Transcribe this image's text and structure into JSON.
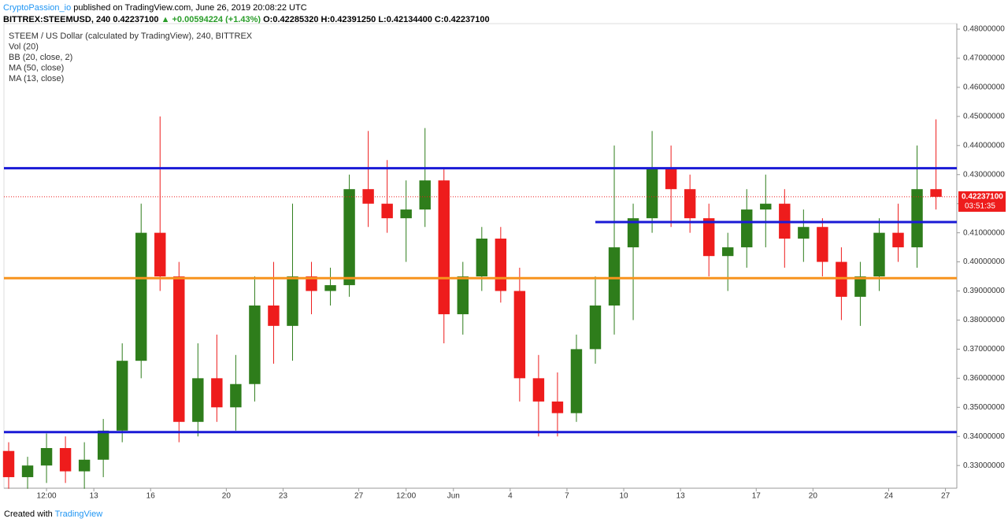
{
  "header": {
    "author": "CryptoPassion_io",
    "published": "published on TradingView.com, June 26, 2019 20:08:22 UTC",
    "symbol": "BITTREX:STEEMUSD, 240",
    "price": "0.42237100",
    "change": "▲ +0.00594224 (+1.43%)",
    "open": "O:0.42285320",
    "high": "H:0.42391250",
    "low": "L:0.42134400",
    "close": "C:0.42237100"
  },
  "footer": {
    "created": "Created with",
    "brand": "TradingView"
  },
  "chart_data": {
    "type": "candlestick",
    "indicators": [
      "STEEM / US Dollar (calculated by TradingView), 240, BITTREX",
      "Vol (20)",
      "BB (20, close, 2)",
      "MA (50, close)",
      "MA (13, close)"
    ],
    "up_color": "#2e7d1b",
    "down_color": "#ee1c1c",
    "xlim": [
      -4.75,
      45.6
    ],
    "ylim": [
      0.3222,
      0.4819
    ],
    "xticks": [
      {
        "value": -2.5,
        "label": "12:00"
      },
      {
        "value": 0,
        "label": "13"
      },
      {
        "value": 3,
        "label": "16"
      },
      {
        "value": 7,
        "label": "20"
      },
      {
        "value": 10,
        "label": "23"
      },
      {
        "value": 14,
        "label": "27"
      },
      {
        "value": 16.5,
        "label": "12:00"
      },
      {
        "value": 19,
        "label": "Jun"
      },
      {
        "value": 22,
        "label": "4"
      },
      {
        "value": 25,
        "label": "7"
      },
      {
        "value": 28,
        "label": "10"
      },
      {
        "value": 31,
        "label": "13"
      },
      {
        "value": 35,
        "label": "17"
      },
      {
        "value": 38,
        "label": "20"
      },
      {
        "value": 42,
        "label": "24"
      },
      {
        "value": 45,
        "label": "27"
      }
    ],
    "yticks": [
      {
        "value": 0.33,
        "label": "0.33000000"
      },
      {
        "value": 0.34,
        "label": "0.34000000"
      },
      {
        "value": 0.35,
        "label": "0.35000000"
      },
      {
        "value": 0.36,
        "label": "0.36000000"
      },
      {
        "value": 0.37,
        "label": "0.37000000"
      },
      {
        "value": 0.38,
        "label": "0.38000000"
      },
      {
        "value": 0.39,
        "label": "0.39000000"
      },
      {
        "value": 0.4,
        "label": "0.40000000"
      },
      {
        "value": 0.41,
        "label": "0.41000000"
      },
      {
        "value": 0.42,
        "label": "0.42000000"
      },
      {
        "value": 0.43,
        "label": "0.43000000"
      },
      {
        "value": 0.44,
        "label": "0.44000000"
      },
      {
        "value": 0.45,
        "label": "0.45000000"
      },
      {
        "value": 0.46,
        "label": "0.46000000"
      },
      {
        "value": 0.47,
        "label": "0.47000000"
      },
      {
        "value": 0.48,
        "label": "0.48000000"
      }
    ],
    "x": [
      -4.5,
      -3.5,
      -2.5,
      -1.5,
      -0.5,
      0.5,
      1.5,
      2.5,
      3.5,
      4.5,
      5.5,
      6.5,
      7.5,
      8.5,
      9.5,
      10.5,
      11.5,
      12.5,
      13.5,
      14.5,
      15.5,
      16.5,
      17.5,
      18.5,
      19.5,
      20.5,
      21.5,
      22.5,
      23.5,
      24.5,
      25.5,
      26.5,
      27.5,
      28.5,
      29.5,
      30.5,
      31.5,
      32.5,
      33.5,
      34.5,
      35.5,
      36.5,
      37.5,
      38.5,
      39.5,
      40.5,
      41.5,
      42.5,
      43.5,
      44.5
    ],
    "open": [
      0.335,
      0.326,
      0.33,
      0.336,
      0.328,
      0.332,
      0.342,
      0.366,
      0.41,
      0.395,
      0.345,
      0.36,
      0.35,
      0.358,
      0.385,
      0.378,
      0.395,
      0.39,
      0.392,
      0.425,
      0.42,
      0.415,
      0.418,
      0.428,
      0.382,
      0.395,
      0.408,
      0.39,
      0.36,
      0.352,
      0.348,
      0.37,
      0.385,
      0.405,
      0.415,
      0.432,
      0.425,
      0.415,
      0.402,
      0.405,
      0.418,
      0.42,
      0.408,
      0.412,
      0.4,
      0.388,
      0.395,
      0.41,
      0.405,
      0.425
    ],
    "high": [
      0.338,
      0.333,
      0.341,
      0.34,
      0.338,
      0.346,
      0.372,
      0.42,
      0.45,
      0.4,
      0.372,
      0.375,
      0.368,
      0.395,
      0.4,
      0.42,
      0.4,
      0.398,
      0.43,
      0.445,
      0.435,
      0.428,
      0.446,
      0.432,
      0.4,
      0.412,
      0.412,
      0.398,
      0.368,
      0.362,
      0.375,
      0.395,
      0.44,
      0.42,
      0.445,
      0.44,
      0.43,
      0.42,
      0.41,
      0.425,
      0.43,
      0.425,
      0.418,
      0.415,
      0.405,
      0.4,
      0.415,
      0.42,
      0.44,
      0.449
    ],
    "low": [
      0.322,
      0.322,
      0.324,
      0.324,
      0.322,
      0.326,
      0.338,
      0.36,
      0.39,
      0.338,
      0.34,
      0.345,
      0.342,
      0.352,
      0.365,
      0.366,
      0.382,
      0.385,
      0.388,
      0.412,
      0.41,
      0.4,
      0.412,
      0.372,
      0.375,
      0.39,
      0.386,
      0.352,
      0.34,
      0.34,
      0.345,
      0.365,
      0.375,
      0.38,
      0.41,
      0.412,
      0.41,
      0.395,
      0.39,
      0.398,
      0.405,
      0.398,
      0.4,
      0.395,
      0.38,
      0.378,
      0.39,
      0.4,
      0.398,
      0.418
    ],
    "close": [
      0.326,
      0.33,
      0.336,
      0.328,
      0.332,
      0.342,
      0.366,
      0.41,
      0.395,
      0.345,
      0.36,
      0.35,
      0.358,
      0.385,
      0.378,
      0.395,
      0.39,
      0.392,
      0.425,
      0.42,
      0.415,
      0.418,
      0.428,
      0.382,
      0.395,
      0.408,
      0.39,
      0.36,
      0.352,
      0.348,
      0.37,
      0.385,
      0.405,
      0.415,
      0.432,
      0.425,
      0.415,
      0.402,
      0.405,
      0.418,
      0.42,
      0.408,
      0.412,
      0.4,
      0.388,
      0.395,
      0.41,
      0.405,
      0.425,
      0.422371
    ],
    "levels": [
      {
        "value": 0.4322,
        "color": "#1a1ad6",
        "x": [
          -4.75,
          45.6
        ]
      },
      {
        "value": 0.4137,
        "color": "#1a1ad6",
        "x": [
          26.5,
          45.6
        ]
      },
      {
        "value": 0.3944,
        "color": "#f7931e",
        "x": [
          -4.75,
          45.6
        ]
      },
      {
        "value": 0.3415,
        "color": "#1a1ad6",
        "x": [
          -4.75,
          45.6
        ]
      }
    ],
    "last_price": {
      "value": 0.422371,
      "label": "0.42237100",
      "countdown": "03:51:35"
    }
  }
}
